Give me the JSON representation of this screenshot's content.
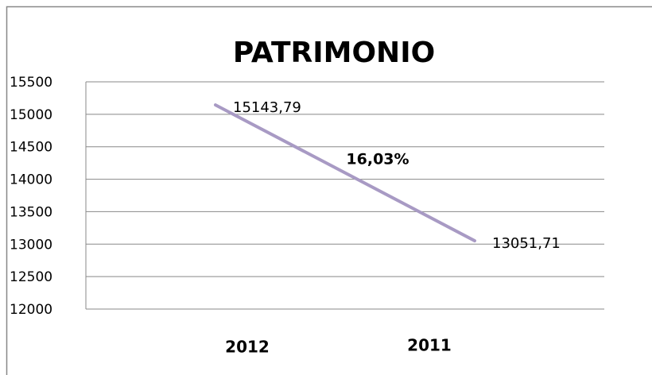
{
  "chart_data": {
    "type": "line",
    "title": "PATRIMONIO",
    "categories": [
      "2012",
      "2011"
    ],
    "series": [
      {
        "name": "PATRIMONIO",
        "color": "#a89ac4",
        "values": [
          15143.79,
          13051.71
        ],
        "value_labels": [
          "15143,79",
          "13051,71"
        ]
      }
    ],
    "annotations": [
      "16,03%"
    ],
    "ylim": [
      12000,
      15500
    ],
    "yticks": [
      12000,
      12500,
      13000,
      13500,
      14000,
      14500,
      15000,
      15500
    ],
    "grid": true
  }
}
